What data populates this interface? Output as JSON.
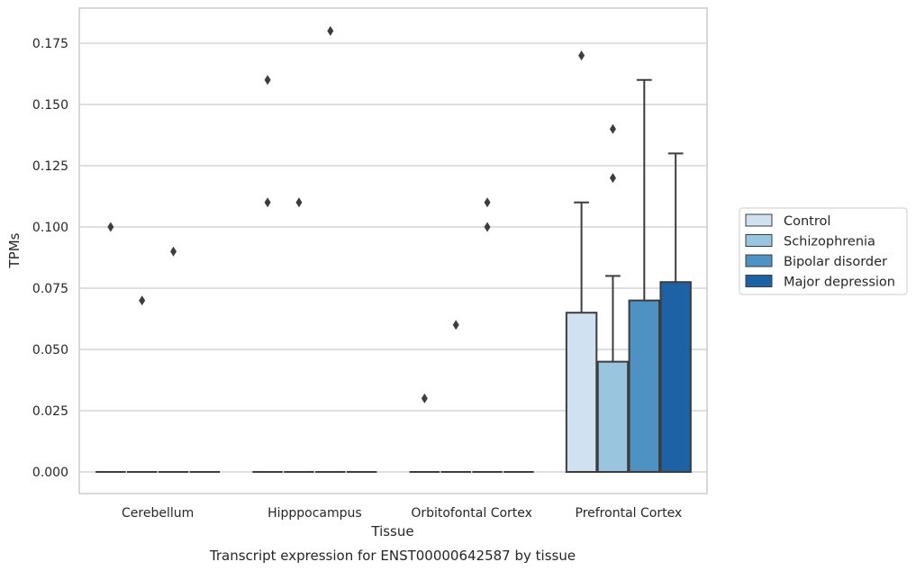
{
  "chart_data": {
    "type": "box",
    "title": "",
    "xlabel": "Tissue",
    "ylabel": "TPMs",
    "caption": "Transcript expression for ENST00000642587 by tissue",
    "ylim": [
      -0.009,
      0.19
    ],
    "yticks": [
      "0.000",
      "0.025",
      "0.050",
      "0.075",
      "0.100",
      "0.125",
      "0.150",
      "0.175"
    ],
    "categories": [
      "Cerebellum",
      "Hipppocampus",
      "Orbitofontal Cortex",
      "Prefrontal Cortex"
    ],
    "grid": "horizontal",
    "legend_position": "center-right",
    "series": [
      {
        "name": "Control",
        "color": "#d0e1f1",
        "boxes": [
          {
            "q1": 0,
            "median": 0,
            "q3": 0,
            "whisker_low": 0,
            "whisker_high": 0,
            "outliers": [
              0.1
            ]
          },
          {
            "q1": 0,
            "median": 0,
            "q3": 0,
            "whisker_low": 0,
            "whisker_high": 0,
            "outliers": [
              0.16,
              0.11
            ]
          },
          {
            "q1": 0,
            "median": 0,
            "q3": 0,
            "whisker_low": 0,
            "whisker_high": 0,
            "outliers": [
              0.03
            ]
          },
          {
            "q1": 0,
            "median": 0,
            "q3": 0.065,
            "whisker_low": 0,
            "whisker_high": 0.11,
            "outliers": [
              0.17
            ]
          }
        ]
      },
      {
        "name": "Schizophrenia",
        "color": "#99c5df",
        "boxes": [
          {
            "q1": 0,
            "median": 0,
            "q3": 0,
            "whisker_low": 0,
            "whisker_high": 0,
            "outliers": [
              0.07
            ]
          },
          {
            "q1": 0,
            "median": 0,
            "q3": 0,
            "whisker_low": 0,
            "whisker_high": 0,
            "outliers": [
              0.11
            ]
          },
          {
            "q1": 0,
            "median": 0,
            "q3": 0,
            "whisker_low": 0,
            "whisker_high": 0,
            "outliers": [
              0.06
            ]
          },
          {
            "q1": 0,
            "median": 0,
            "q3": 0.045,
            "whisker_low": 0,
            "whisker_high": 0.08,
            "outliers": [
              0.14,
              0.12
            ]
          }
        ]
      },
      {
        "name": "Bipolar disorder",
        "color": "#4d92c3",
        "boxes": [
          {
            "q1": 0,
            "median": 0,
            "q3": 0,
            "whisker_low": 0,
            "whisker_high": 0,
            "outliers": [
              0.09
            ]
          },
          {
            "q1": 0,
            "median": 0,
            "q3": 0,
            "whisker_low": 0,
            "whisker_high": 0,
            "outliers": [
              0.18
            ]
          },
          {
            "q1": 0,
            "median": 0,
            "q3": 0,
            "whisker_low": 0,
            "whisker_high": 0,
            "outliers": [
              0.11,
              0.1
            ]
          },
          {
            "q1": 0,
            "median": 0,
            "q3": 0.07,
            "whisker_low": 0,
            "whisker_high": 0.16,
            "outliers": []
          }
        ]
      },
      {
        "name": "Major depression",
        "color": "#1d62a4",
        "boxes": [
          {
            "q1": 0,
            "median": 0,
            "q3": 0,
            "whisker_low": 0,
            "whisker_high": 0,
            "outliers": []
          },
          {
            "q1": 0,
            "median": 0,
            "q3": 0,
            "whisker_low": 0,
            "whisker_high": 0,
            "outliers": []
          },
          {
            "q1": 0,
            "median": 0,
            "q3": 0,
            "whisker_low": 0,
            "whisker_high": 0,
            "outliers": []
          },
          {
            "q1": 0,
            "median": 0,
            "q3": 0.0775,
            "whisker_low": 0,
            "whisker_high": 0.13,
            "outliers": []
          }
        ]
      }
    ],
    "colors": {
      "axis_frame": "#cccccc",
      "grid": "#cccccc",
      "box_edge": "#3d3d3d",
      "outlier": "#3d3d3d"
    }
  }
}
